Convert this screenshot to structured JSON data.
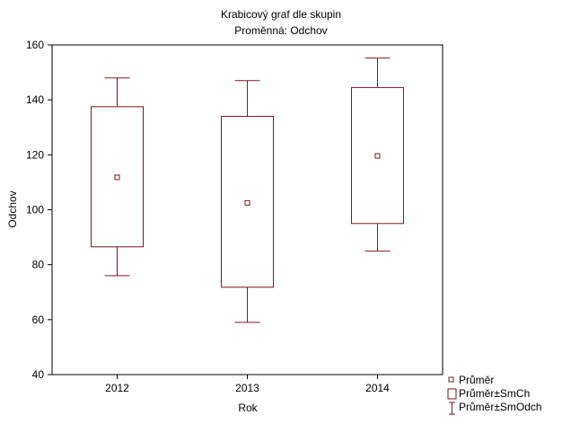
{
  "chart_data": {
    "type": "boxplot",
    "title": "Krabicový graf dle skupin",
    "subtitle": "Proměnná: Odchov",
    "xlabel": "Rok",
    "ylabel": "Odchov",
    "categories": [
      "2012",
      "2013",
      "2014"
    ],
    "ylim": [
      40,
      160
    ],
    "yticks": [
      "40",
      "60",
      "80",
      "100",
      "120",
      "140",
      "160"
    ],
    "grid": false,
    "legend_position": "bottom-right",
    "series": [
      {
        "category": "2012",
        "mean": 111.8,
        "box_low": 86.5,
        "box_high": 137.5,
        "whisker_low": 76,
        "whisker_high": 148
      },
      {
        "category": "2013",
        "mean": 102.5,
        "box_low": 71.8,
        "box_high": 134,
        "whisker_low": 59,
        "whisker_high": 147
      },
      {
        "category": "2014",
        "mean": 119.6,
        "box_low": 95,
        "box_high": 144.5,
        "whisker_low": 85,
        "whisker_high": 155.2
      }
    ],
    "legend": [
      {
        "symbol": "mean-marker",
        "label": "Průměr"
      },
      {
        "symbol": "box",
        "label": "Průměr±SmCh"
      },
      {
        "symbol": "whisker",
        "label": "Průměr±SmOdch"
      }
    ],
    "colors": {
      "series": "#7a1a1f",
      "axis": "#000000"
    }
  }
}
